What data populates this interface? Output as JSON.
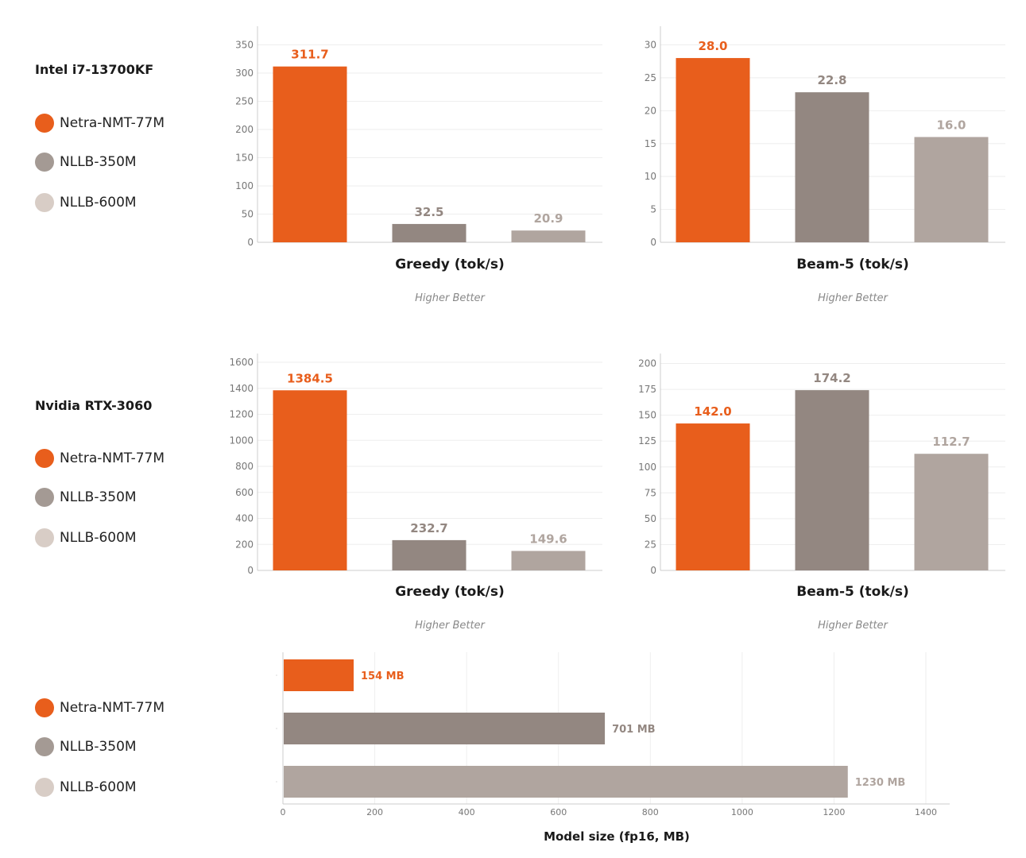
{
  "colors": {
    "Netra-NMT-77M": "#e85e1c",
    "NLLB-350M": "#938781",
    "NLLB-600M": "#b0a59f",
    "legend_NLLB-600M": "#d8cdc6",
    "legend_NLLB-350M": "#a49a94"
  },
  "sections": [
    {
      "title": "Intel i7-13700KF",
      "legend": [
        "Netra-NMT-77M",
        "NLLB-350M",
        "NLLB-600M"
      ]
    },
    {
      "title": "Nvidia RTX-3060",
      "legend": [
        "Netra-NMT-77M",
        "NLLB-350M",
        "NLLB-600M"
      ]
    },
    {
      "title": "",
      "legend": [
        "Netra-NMT-77M",
        "NLLB-350M",
        "NLLB-600M"
      ]
    }
  ],
  "chart_data": [
    {
      "type": "bar",
      "group": "Intel i7-13700KF",
      "categories": [
        "Netra-NMT-77M",
        "NLLB-350M",
        "NLLB-600M"
      ],
      "values": [
        311.7,
        32.5,
        20.9
      ],
      "labels": [
        "311.7",
        "32.5",
        "20.9"
      ],
      "xlabel": "Greedy (tok/s)",
      "note": "Higher Better",
      "ylim": [
        0,
        350
      ],
      "yticks": [
        0,
        50,
        100,
        150,
        200,
        250,
        300,
        350
      ],
      "grid": true
    },
    {
      "type": "bar",
      "group": "Intel i7-13700KF",
      "categories": [
        "Netra-NMT-77M",
        "NLLB-350M",
        "NLLB-600M"
      ],
      "values": [
        28.0,
        22.8,
        16.0
      ],
      "labels": [
        "28.0",
        "22.8",
        "16.0"
      ],
      "xlabel": "Beam-5 (tok/s)",
      "note": "Higher Better",
      "ylim": [
        0,
        30
      ],
      "yticks": [
        0,
        5,
        10,
        15,
        20,
        25,
        30
      ],
      "grid": true
    },
    {
      "type": "bar",
      "group": "Nvidia RTX-3060",
      "categories": [
        "Netra-NMT-77M",
        "NLLB-350M",
        "NLLB-600M"
      ],
      "values": [
        1384.5,
        232.7,
        149.6
      ],
      "labels": [
        "1384.5",
        "232.7",
        "149.6"
      ],
      "xlabel": "Greedy (tok/s)",
      "note": "Higher Better",
      "ylim": [
        0,
        1600
      ],
      "yticks": [
        0,
        200,
        400,
        600,
        800,
        1000,
        1200,
        1400,
        1600
      ],
      "grid": true
    },
    {
      "type": "bar",
      "group": "Nvidia RTX-3060",
      "categories": [
        "Netra-NMT-77M",
        "NLLB-350M",
        "NLLB-600M"
      ],
      "values": [
        142.0,
        174.2,
        112.7
      ],
      "labels": [
        "142.0",
        "174.2",
        "112.7"
      ],
      "xlabel": "Beam-5 (tok/s)",
      "note": "Higher Better",
      "ylim": [
        0,
        200
      ],
      "yticks": [
        0,
        25,
        50,
        75,
        100,
        125,
        150,
        175,
        200
      ],
      "grid": true
    },
    {
      "type": "bar",
      "orientation": "horizontal",
      "categories": [
        "Netra-NMT-77M",
        "NLLB-350M",
        "NLLB-600M"
      ],
      "values": [
        154,
        701,
        1230
      ],
      "labels": [
        "154 MB",
        "701 MB",
        "1230 MB"
      ],
      "xlabel": "Model size (fp16, MB)",
      "xlim": [
        0,
        1450
      ],
      "xticks": [
        0,
        200,
        400,
        600,
        800,
        1000,
        1200,
        1400
      ],
      "grid": true
    }
  ]
}
